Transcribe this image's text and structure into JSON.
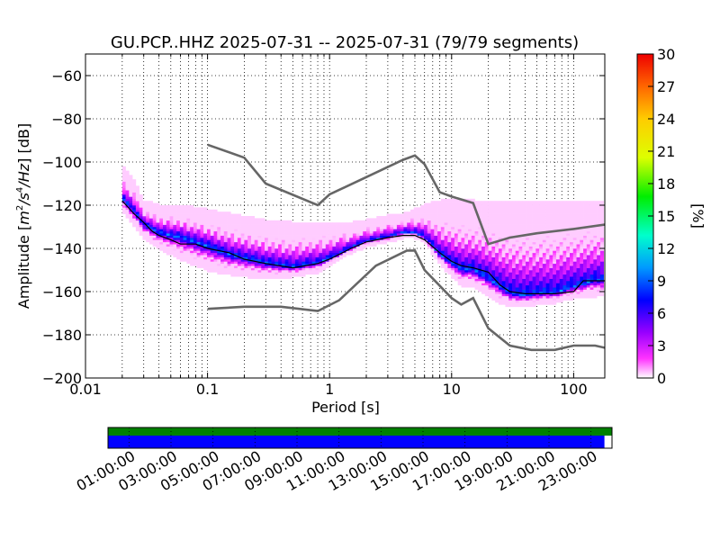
{
  "chart_data": [
    {
      "type": "heatmap",
      "title": "GU.PCP..HHZ   2025-07-31 -- 2025-07-31  (79/79 segments)",
      "xlabel": "Period [s]",
      "ylabel_prefix": "Amplitude [",
      "ylabel_suffix": "] [dB]",
      "ylabel_units": {
        "base": "m",
        "exp1": "2",
        "slash1": "/s",
        "exp2": "4",
        "slash2": "/Hz"
      },
      "x_scale": "log",
      "xlim": [
        0.01,
        180
      ],
      "ylim": [
        -200,
        -50
      ],
      "x_ticks": [
        0.01,
        0.1,
        1,
        10,
        100
      ],
      "x_tick_labels": [
        "0.01",
        "0.1",
        "1",
        "10",
        "100"
      ],
      "y_ticks": [
        -200,
        -180,
        -160,
        -140,
        -120,
        -100,
        -80,
        -60
      ],
      "y_tick_labels": [
        "−200",
        "−180",
        "−160",
        "−140",
        "−120",
        "−100",
        "−80",
        "−60"
      ],
      "grid": true,
      "colorbar": {
        "label": "[%]",
        "range": [
          0,
          30
        ],
        "ticks": [
          0,
          3,
          6,
          9,
          12,
          15,
          18,
          21,
          24,
          27,
          30
        ],
        "tick_labels": [
          "0",
          "3",
          "6",
          "9",
          "12",
          "15",
          "18",
          "21",
          "24",
          "27",
          "30"
        ],
        "colormap": "pqlx"
      },
      "density_core": {
        "period": [
          0.02,
          0.025,
          0.03,
          0.04,
          0.06,
          0.1,
          0.15,
          0.3,
          0.5,
          0.8,
          1,
          1.5,
          2,
          3,
          4,
          5,
          6,
          8,
          10,
          12,
          15,
          20,
          25,
          30,
          40,
          50,
          70,
          100,
          150,
          180
        ],
        "median_db": [
          -117,
          -123,
          -129,
          -133,
          -135,
          -139,
          -143,
          -147,
          -149,
          -147,
          -145,
          -140,
          -137,
          -135,
          -133,
          -133,
          -135,
          -143,
          -147,
          -150,
          -150,
          -154,
          -158,
          -161,
          -162,
          -161,
          -161,
          -158,
          -155,
          -155
        ],
        "upper_db": [
          -102,
          -108,
          -118,
          -120,
          -120,
          -122,
          -124,
          -127,
          -128,
          -128,
          -128,
          -128,
          -127,
          -125,
          -124,
          -122,
          -120,
          -118,
          -117,
          -117,
          -118,
          -118,
          -118,
          -118,
          -118,
          -118,
          -118,
          -118,
          -118,
          -118
        ],
        "lower_db": [
          -122,
          -129,
          -135,
          -140,
          -145,
          -150,
          -152,
          -154,
          -153,
          -151,
          -148,
          -142,
          -139,
          -137,
          -135,
          -135,
          -137,
          -147,
          -153,
          -157,
          -158,
          -162,
          -165,
          -167,
          -167,
          -166,
          -165,
          -163,
          -162,
          -162
        ]
      },
      "median_curve": {
        "period": [
          0.02,
          0.025,
          0.03,
          0.035,
          0.04,
          0.05,
          0.06,
          0.08,
          0.1,
          0.15,
          0.2,
          0.3,
          0.5,
          0.8,
          1,
          1.5,
          2,
          3,
          4,
          5,
          6,
          8,
          10,
          12,
          15,
          20,
          25,
          30,
          40,
          50,
          70,
          100,
          120,
          180
        ],
        "db": [
          -118,
          -124,
          -128,
          -132,
          -134,
          -136,
          -138,
          -138,
          -140,
          -142,
          -145,
          -147,
          -149,
          -147,
          -145,
          -140,
          -137,
          -135,
          -134,
          -134,
          -136,
          -142,
          -146,
          -148,
          -149,
          -151,
          -157,
          -160,
          -161,
          -161,
          -161,
          -160,
          -155,
          -155
        ]
      },
      "noise_models": [
        {
          "period": [
            0.1,
            0.2,
            0.3,
            0.8,
            1,
            2,
            4,
            5,
            6,
            8,
            10,
            15,
            20,
            30,
            50,
            100,
            180
          ],
          "db": [
            -92,
            -98,
            -110,
            -120,
            -115,
            -107,
            -99,
            -97,
            -101,
            -114,
            -116,
            -119,
            -138,
            -135,
            -133,
            -131,
            -129
          ]
        },
        {
          "period": [
            0.1,
            0.2,
            0.4,
            0.8,
            1.2,
            2.4,
            4.3,
            5,
            6,
            10,
            12,
            15,
            20,
            30,
            45,
            70,
            100,
            150,
            180
          ],
          "db": [
            -168,
            -167,
            -167,
            -169,
            -164,
            -148,
            -141,
            -141,
            -150,
            -163,
            -166,
            -163,
            -177,
            -185,
            -187,
            -187,
            -185,
            -185,
            -186
          ]
        }
      ]
    },
    {
      "type": "timeline",
      "x_ticks": [
        "01:00:00",
        "03:00:00",
        "05:00:00",
        "07:00:00",
        "09:00:00",
        "11:00:00",
        "13:00:00",
        "15:00:00",
        "17:00:00",
        "19:00:00",
        "21:00:00",
        "23:00:00"
      ],
      "coverage_colors": [
        "#008000",
        "#0000ff"
      ],
      "coverage_fraction": [
        1.0,
        0.985
      ]
    }
  ]
}
